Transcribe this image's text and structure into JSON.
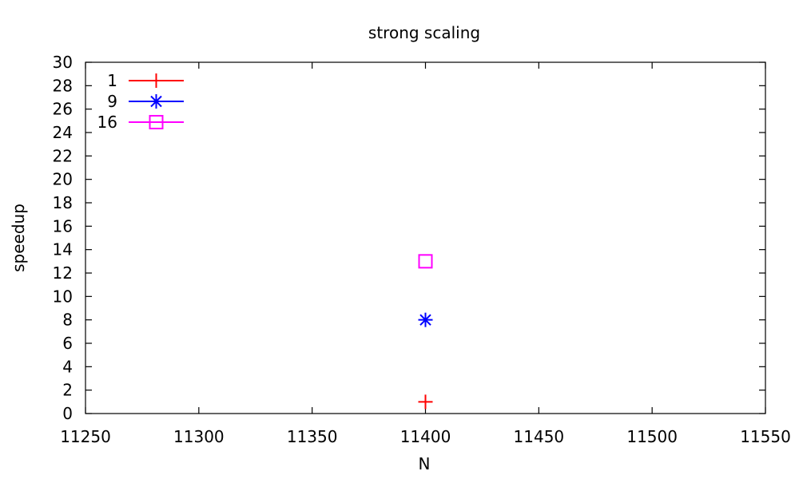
{
  "chart_data": {
    "type": "scatter",
    "title": "strong scaling",
    "xlabel": "N",
    "ylabel": "speedup",
    "xlim": [
      11250,
      11550
    ],
    "ylim": [
      0,
      30
    ],
    "xticks": [
      11250,
      11300,
      11350,
      11400,
      11450,
      11500,
      11550
    ],
    "yticks": [
      0,
      2,
      4,
      6,
      8,
      10,
      12,
      14,
      16,
      18,
      20,
      22,
      24,
      26,
      28,
      30
    ],
    "grid": false,
    "legend_position": "top-left",
    "series": [
      {
        "name": "1",
        "marker": "plus",
        "color": "#ff0000",
        "points": [
          {
            "x": 11400,
            "y": 1
          }
        ]
      },
      {
        "name": "9",
        "marker": "star",
        "color": "#0000ff",
        "points": [
          {
            "x": 11400,
            "y": 8
          }
        ]
      },
      {
        "name": "16",
        "marker": "square",
        "color": "#ff00ff",
        "points": [
          {
            "x": 11400,
            "y": 13
          }
        ]
      }
    ]
  }
}
